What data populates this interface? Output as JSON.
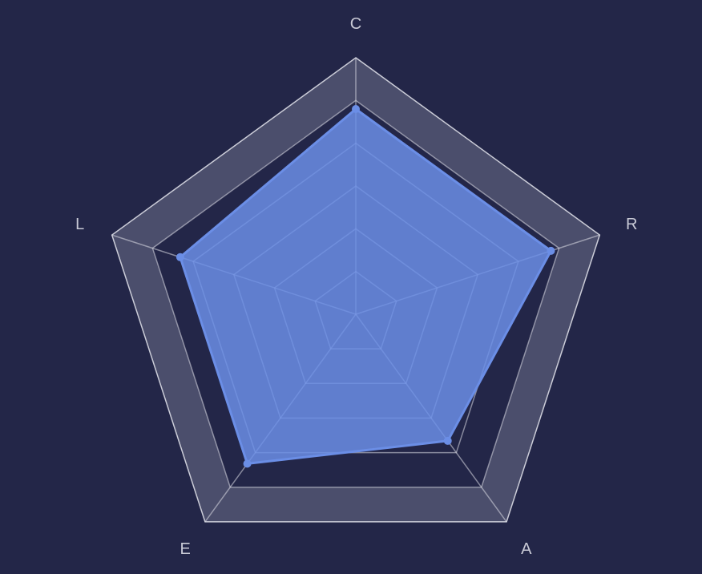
{
  "chart_data": {
    "type": "radar",
    "indicators": [
      "C",
      "R",
      "A",
      "E",
      "L"
    ],
    "max": 100,
    "series": [
      {
        "values": [
          80,
          80,
          61,
          72,
          72
        ]
      }
    ],
    "split_levels": 6,
    "colors": {
      "background": "#232648",
      "outer_band": "#4b4e6c",
      "grid_line": "#dcdde6",
      "series": "#6b8ee6"
    }
  }
}
